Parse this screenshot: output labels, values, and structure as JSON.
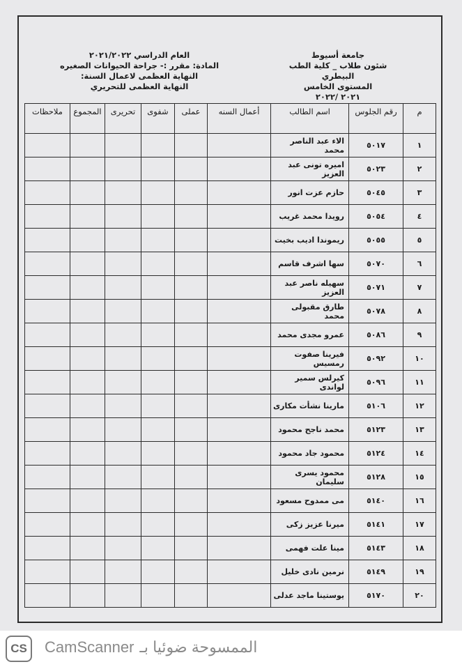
{
  "header_right": [
    "جامعة أسيوط",
    "شئون طلاب _ كلية الطب البيطري",
    "المستوى الخامس",
    "٢٠٢١ /٢٠٢٢"
  ],
  "header_left": [
    "العام الدراسي ٢٠٢١/٢٠٢٢",
    "المادة: مقرر :- جراحة الحيوانات الصغيره",
    "النهاية العظمى لاعمال السنة:",
    "النهاية العظمى للتحريري"
  ],
  "columns": [
    "م",
    "رقم الجلوس",
    "اسم الطالب",
    "أعمال السنه",
    "عملى",
    "شفوى",
    "تحريرى",
    "المجموع",
    "ملاحظات"
  ],
  "rows": [
    {
      "n": "١",
      "seat": "٥٠١٧",
      "name": "الاء عبد الناصر محمد"
    },
    {
      "n": "٢",
      "seat": "٥٠٢٣",
      "name": "اميره تونى عبد العزيز"
    },
    {
      "n": "٣",
      "seat": "٥٠٤٥",
      "name": "حازم عزت انور"
    },
    {
      "n": "٤",
      "seat": "٥٠٥٤",
      "name": "رويدا محمد غريب"
    },
    {
      "n": "٥",
      "seat": "٥٠٥٥",
      "name": "ريموندا اديب بخيت"
    },
    {
      "n": "٦",
      "seat": "٥٠٧٠",
      "name": "سها اشرف قاسم"
    },
    {
      "n": "٧",
      "seat": "٥٠٧١",
      "name": "سهيله ناصر عبد العزيز"
    },
    {
      "n": "٨",
      "seat": "٥٠٧٨",
      "name": "طارق مقبولى محمد"
    },
    {
      "n": "٩",
      "seat": "٥٠٨٦",
      "name": "عمرو مجدى محمد"
    },
    {
      "n": "١٠",
      "seat": "٥٠٩٢",
      "name": "فيرينا صفوت رمسيس"
    },
    {
      "n": "١١",
      "seat": "٥٠٩٦",
      "name": "كيرلس سمير لواندى"
    },
    {
      "n": "١٢",
      "seat": "٥١٠٦",
      "name": "مارينا نشأت مكارى"
    },
    {
      "n": "١٣",
      "seat": "٥١٢٣",
      "name": "محمد ناجح محمود"
    },
    {
      "n": "١٤",
      "seat": "٥١٢٤",
      "name": "محمود جاد محمود"
    },
    {
      "n": "١٥",
      "seat": "٥١٢٨",
      "name": "محمود يسرى سليمان"
    },
    {
      "n": "١٦",
      "seat": "٥١٤٠",
      "name": "مى ممدوح مسعود"
    },
    {
      "n": "١٧",
      "seat": "٥١٤١",
      "name": "ميرنا عزيز زكى"
    },
    {
      "n": "١٨",
      "seat": "٥١٤٣",
      "name": "مينا علت فهمى"
    },
    {
      "n": "١٩",
      "seat": "٥١٤٩",
      "name": "نرمين نادى خليل"
    },
    {
      "n": "٢٠",
      "seat": "٥١٧٠",
      "name": "يوستينا ماجد عدلى"
    }
  ],
  "footer": {
    "logo": "CS",
    "brand": "CamScanner",
    "text": "الممسوحة ضوئيا بـ"
  }
}
